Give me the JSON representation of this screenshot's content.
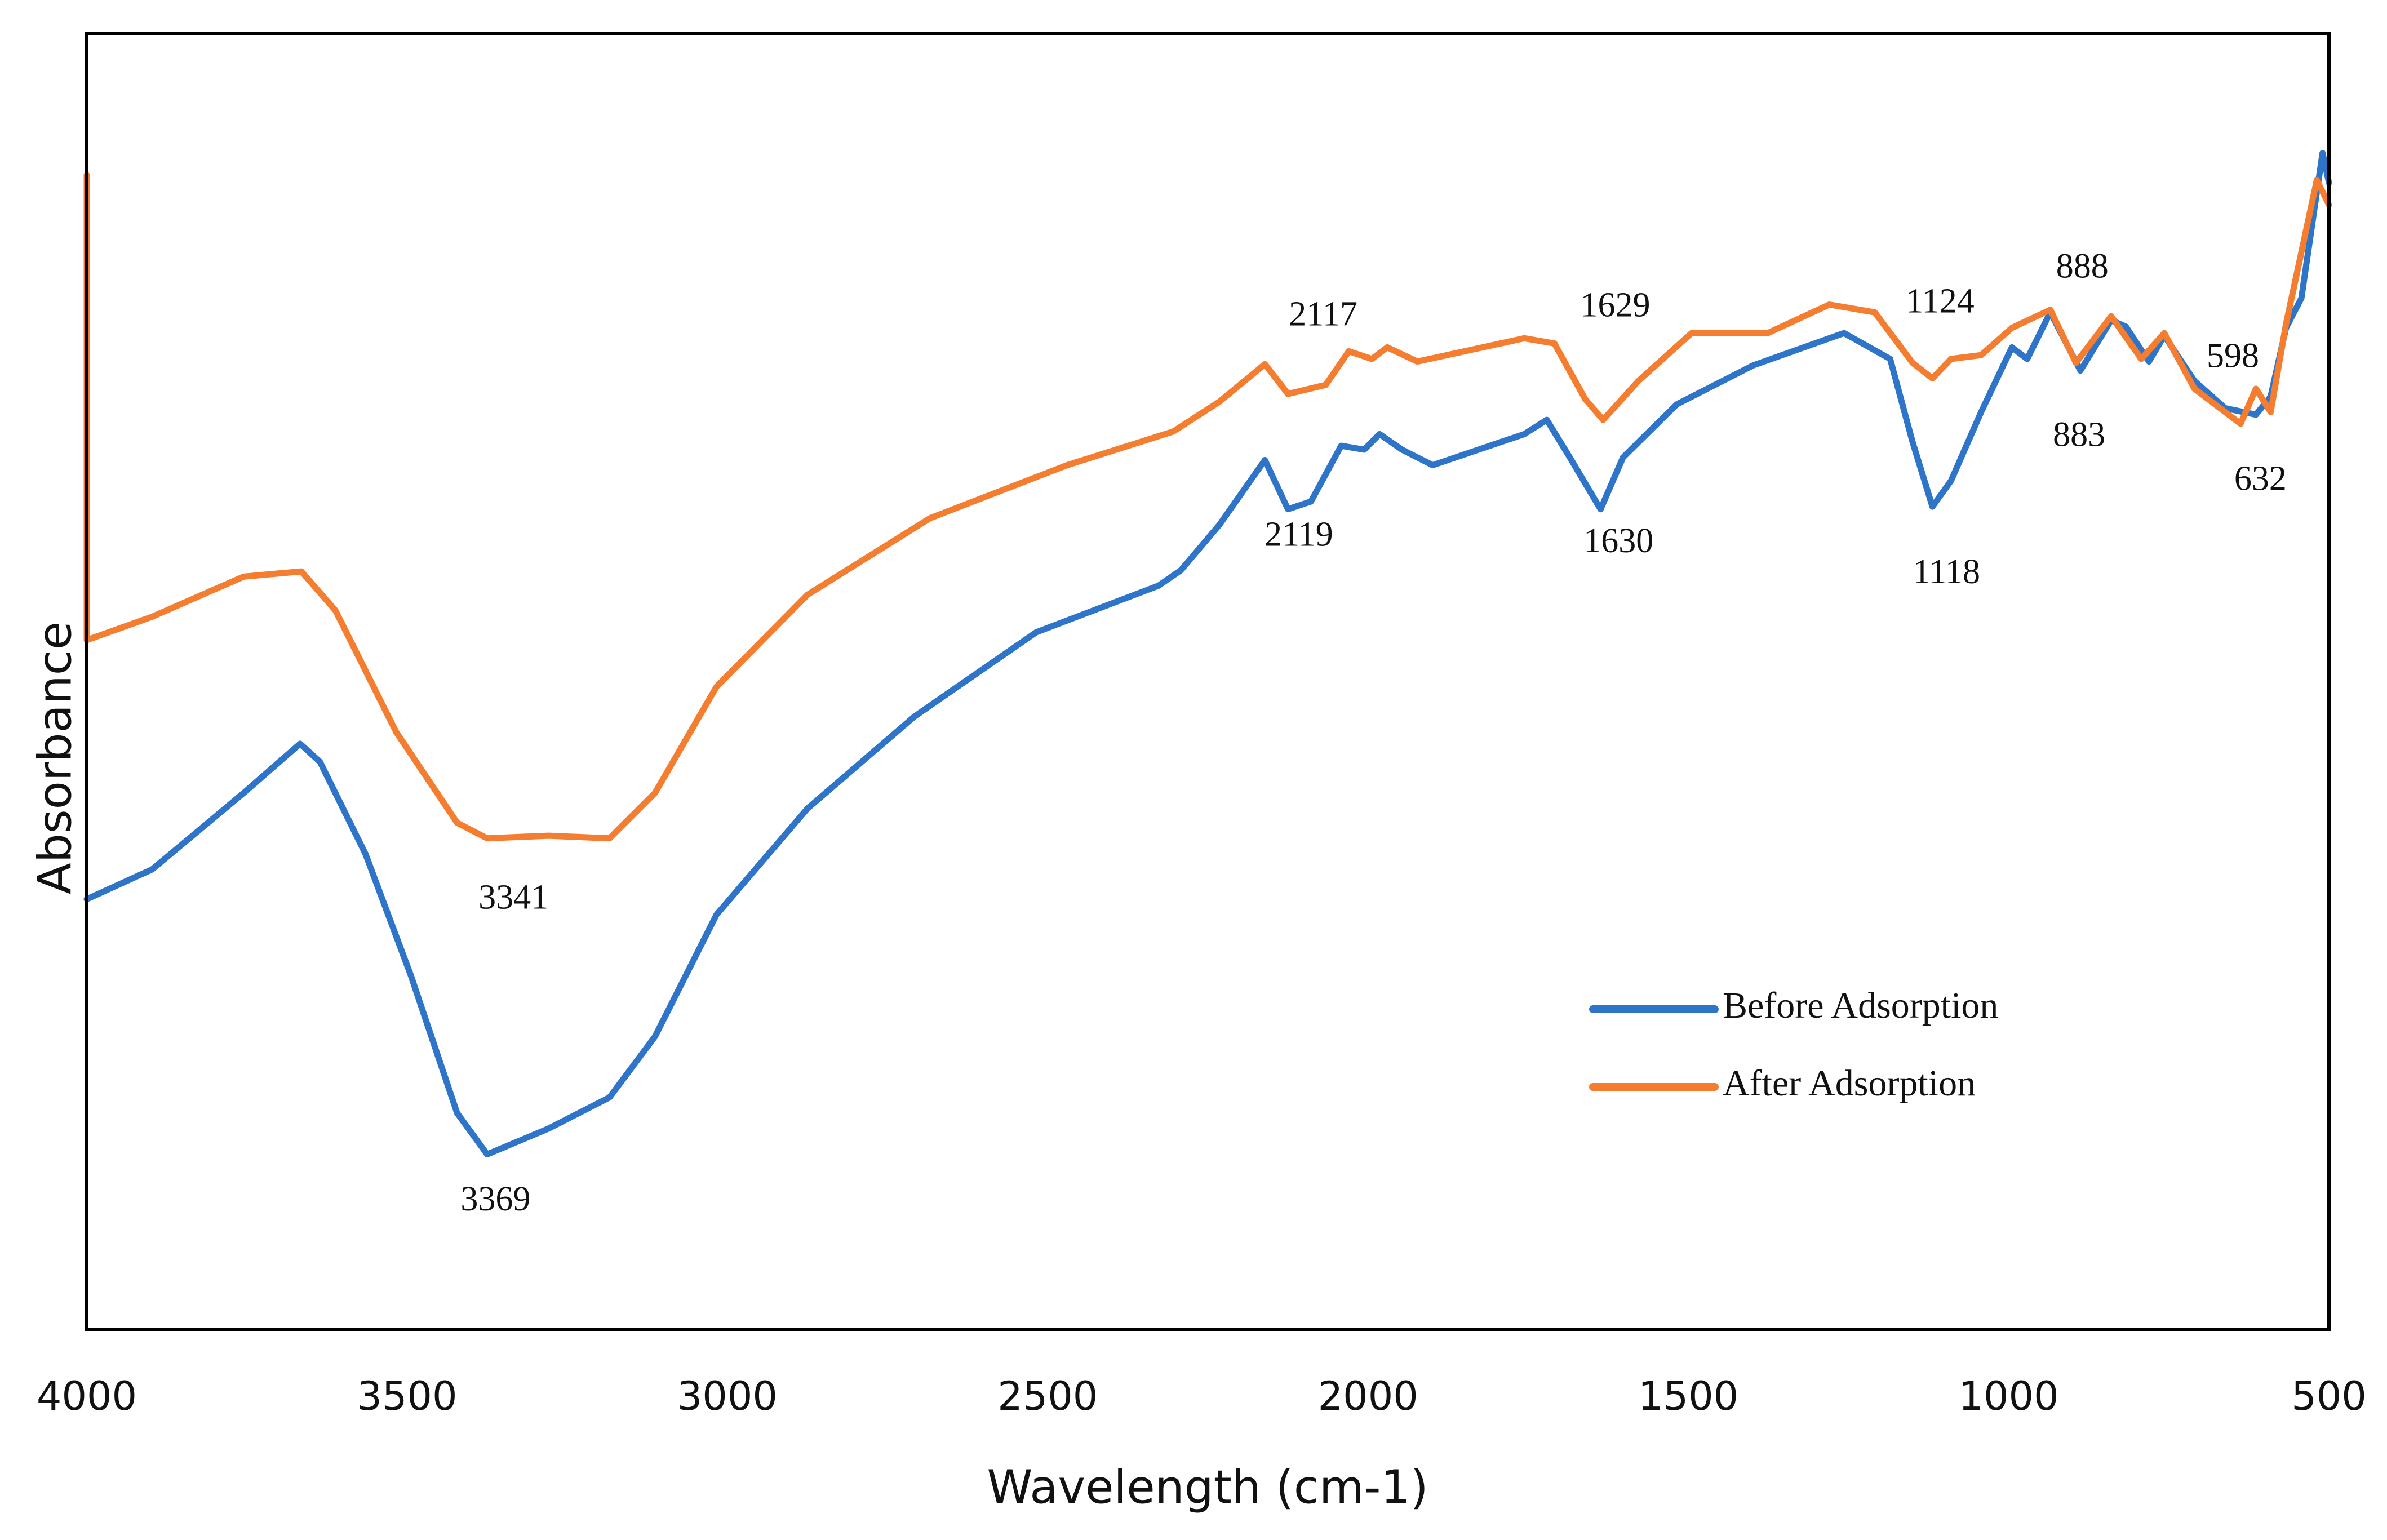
{
  "chart_data": {
    "type": "line",
    "xlabel": "Wavelength (cm-1)",
    "ylabel": "Absorbance",
    "xlim": [
      4000,
      500
    ],
    "xticks": [
      4000,
      3500,
      3000,
      2500,
      2000,
      1500,
      1000,
      500
    ],
    "ylim": [
      0,
      100
    ],
    "legend": "lower right",
    "series": [
      {
        "name": "Before Adsorption",
        "color": "#2e74c9",
        "x": [
          4000,
          3898,
          3755,
          3667,
          3636,
          3565,
          3494,
          3422,
          3375,
          3279,
          3184,
          3113,
          3017,
          2875,
          2708,
          2518,
          2327,
          2292,
          2232,
          2161,
          2125,
          2089,
          2042,
          2006,
          1982,
          1947,
          1899,
          1756,
          1721,
          1685,
          1637,
          1602,
          1518,
          1399,
          1257,
          1185,
          1150,
          1119,
          1090,
          1043,
          995,
          971,
          935,
          888,
          840,
          817,
          781,
          757,
          710,
          662,
          614,
          591,
          567,
          543,
          510,
          500
        ],
        "values": [
          33.2,
          35.5,
          41.4,
          45.2,
          43.8,
          36.7,
          27.3,
          16.7,
          13.5,
          15.5,
          17.9,
          22.6,
          32.0,
          40.2,
          47.3,
          53.8,
          57.4,
          58.6,
          62.1,
          67.1,
          63.3,
          63.9,
          68.2,
          67.9,
          69.1,
          67.9,
          66.7,
          69.1,
          70.2,
          67.3,
          63.3,
          67.3,
          71.4,
          74.4,
          76.9,
          74.9,
          68.5,
          63.5,
          65.5,
          70.8,
          75.8,
          74.9,
          78.5,
          74.0,
          77.9,
          77.4,
          74.7,
          76.7,
          73.2,
          71.1,
          70.6,
          72.0,
          77.3,
          79.6,
          90.8,
          88.5
        ]
      },
      {
        "name": "After Adsorption",
        "color": "#f47d30",
        "x": [
          4000,
          4000,
          3898,
          3755,
          3665,
          3612,
          3517,
          3422,
          3375,
          3279,
          3184,
          3113,
          3017,
          2875,
          2684,
          2470,
          2304,
          2232,
          2161,
          2125,
          2066,
          2030,
          1994,
          1970,
          1923,
          1756,
          1709,
          1661,
          1633,
          1578,
          1495,
          1376,
          1280,
          1209,
          1150,
          1119,
          1090,
          1043,
          995,
          935,
          895,
          840,
          793,
          757,
          710,
          638,
          614,
          591,
          567,
          519,
          500
        ],
        "values": [
          89.1,
          53.2,
          55.0,
          58.1,
          58.5,
          55.5,
          46.1,
          39.1,
          37.9,
          38.1,
          37.9,
          41.4,
          49.6,
          56.7,
          62.6,
          66.7,
          69.3,
          71.6,
          74.5,
          72.2,
          72.9,
          75.5,
          74.9,
          75.8,
          74.7,
          76.5,
          76.1,
          71.8,
          70.2,
          73.2,
          76.9,
          76.9,
          79.1,
          78.5,
          74.6,
          73.4,
          74.9,
          75.2,
          77.3,
          78.7,
          74.6,
          78.2,
          74.9,
          76.9,
          72.6,
          69.9,
          72.6,
          70.8,
          77.6,
          88.7,
          86.8
        ]
      }
    ],
    "annotations": [
      {
        "text": "2117",
        "x": 2070,
        "y": 78.1
      },
      {
        "text": "1629",
        "x": 1614,
        "y": 78.8
      },
      {
        "text": "1124",
        "x": 1107,
        "y": 79.1
      },
      {
        "text": "888",
        "x": 885,
        "y": 81.8
      },
      {
        "text": "598",
        "x": 650,
        "y": 74.9
      },
      {
        "text": "3341",
        "x": 3334,
        "y": 33.1
      },
      {
        "text": "2119",
        "x": 2108,
        "y": 61.1
      },
      {
        "text": "1630",
        "x": 1609,
        "y": 60.6
      },
      {
        "text": "1118",
        "x": 1097,
        "y": 58.2
      },
      {
        "text": "883",
        "x": 890,
        "y": 68.8
      },
      {
        "text": "632",
        "x": 607,
        "y": 65.4
      },
      {
        "text": "3369",
        "x": 3362,
        "y": 9.8
      }
    ]
  }
}
